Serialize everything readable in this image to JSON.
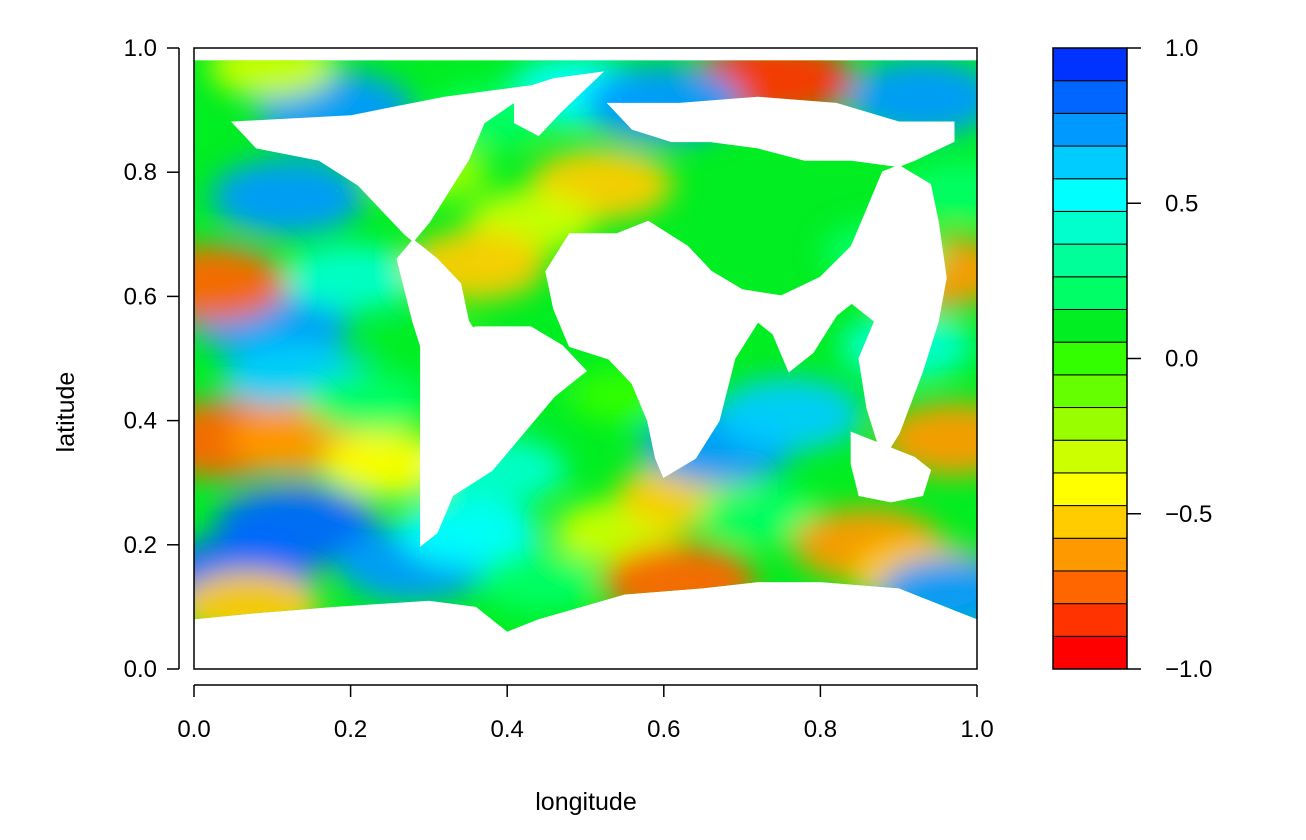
{
  "chart_data": {
    "type": "heatmap",
    "title": "",
    "xlabel": "longitude",
    "ylabel": "latitude",
    "xlim": [
      0.0,
      1.0
    ],
    "ylim": [
      0.0,
      1.0
    ],
    "x_ticks": [
      "0.0",
      "0.2",
      "0.4",
      "0.6",
      "0.8",
      "1.0"
    ],
    "y_ticks": [
      "0.0",
      "0.2",
      "0.4",
      "0.6",
      "0.8",
      "1.0"
    ],
    "grid": false,
    "colorbar": {
      "range": [
        -1.0,
        1.0
      ],
      "ticks": [
        "1.0",
        "0.5",
        "0.0",
        "−0.5",
        "−1.0"
      ],
      "tick_values": [
        1.0,
        0.5,
        0.0,
        -0.5,
        -1.0
      ],
      "colors_bottom_to_top": [
        "#ff0000",
        "#ff3300",
        "#ff6600",
        "#ff9900",
        "#ffcc00",
        "#ffff00",
        "#ccff00",
        "#99ff00",
        "#66ff00",
        "#33ff00",
        "#00ee22",
        "#00ff66",
        "#00ff99",
        "#00ffcc",
        "#00ffff",
        "#00ccff",
        "#0099ff",
        "#0066ff",
        "#0033ff"
      ]
    },
    "ocean_field_blobs": [
      {
        "x": 0.13,
        "y": 0.23,
        "v": 0.85
      },
      {
        "x": 0.05,
        "y": 0.15,
        "v": 0.8
      },
      {
        "x": 0.28,
        "y": 0.17,
        "v": 0.7
      },
      {
        "x": 0.1,
        "y": 0.56,
        "v": 0.75
      },
      {
        "x": 0.13,
        "y": 0.47,
        "v": 0.6
      },
      {
        "x": 0.12,
        "y": 0.76,
        "v": 0.7
      },
      {
        "x": 0.2,
        "y": 0.63,
        "v": 0.4
      },
      {
        "x": 0.04,
        "y": 0.37,
        "v": -0.75
      },
      {
        "x": 0.14,
        "y": 0.37,
        "v": -0.6
      },
      {
        "x": 0.02,
        "y": 0.62,
        "v": -0.7
      },
      {
        "x": 0.25,
        "y": 0.33,
        "v": -0.4
      },
      {
        "x": 0.22,
        "y": 0.43,
        "v": 0.2
      },
      {
        "x": 0.3,
        "y": 0.52,
        "v": 0.1
      },
      {
        "x": 0.35,
        "y": 0.22,
        "v": 0.5
      },
      {
        "x": 0.39,
        "y": 0.32,
        "v": 0.4
      },
      {
        "x": 0.44,
        "y": 0.14,
        "v": 0.2
      },
      {
        "x": 0.42,
        "y": 0.46,
        "v": 0.1
      },
      {
        "x": 0.54,
        "y": 0.22,
        "v": -0.3
      },
      {
        "x": 0.63,
        "y": 0.28,
        "v": -0.5
      },
      {
        "x": 0.62,
        "y": 0.14,
        "v": -0.7
      },
      {
        "x": 0.67,
        "y": 0.36,
        "v": 0.7
      },
      {
        "x": 0.76,
        "y": 0.41,
        "v": 0.6
      },
      {
        "x": 0.72,
        "y": 0.25,
        "v": 0.2
      },
      {
        "x": 0.86,
        "y": 0.2,
        "v": -0.65
      },
      {
        "x": 0.93,
        "y": 0.15,
        "v": -0.5
      },
      {
        "x": 0.97,
        "y": 0.12,
        "v": 0.7
      },
      {
        "x": 0.97,
        "y": 0.37,
        "v": -0.6
      },
      {
        "x": 0.95,
        "y": 0.64,
        "v": -0.6
      },
      {
        "x": 0.91,
        "y": 0.52,
        "v": 0.4
      },
      {
        "x": 0.88,
        "y": 0.67,
        "v": 0.2
      },
      {
        "x": 0.98,
        "y": 0.77,
        "v": 0.2
      },
      {
        "x": 0.74,
        "y": 0.95,
        "v": -0.8
      },
      {
        "x": 0.52,
        "y": 0.78,
        "v": -0.55
      },
      {
        "x": 0.43,
        "y": 0.72,
        "v": -0.3
      },
      {
        "x": 0.36,
        "y": 0.65,
        "v": -0.5
      },
      {
        "x": 0.49,
        "y": 0.93,
        "v": 0.5
      },
      {
        "x": 0.6,
        "y": 0.91,
        "v": 0.75
      },
      {
        "x": 0.38,
        "y": 0.89,
        "v": 0.2
      },
      {
        "x": 0.18,
        "y": 0.9,
        "v": 0.75
      },
      {
        "x": 0.1,
        "y": 0.97,
        "v": -0.3
      },
      {
        "x": 0.07,
        "y": 0.1,
        "v": -0.55
      },
      {
        "x": 0.93,
        "y": 0.92,
        "v": 0.7
      },
      {
        "x": 0.55,
        "y": 0.44,
        "v": 0.0
      },
      {
        "x": 0.3,
        "y": 0.8,
        "v": -0.2
      }
    ],
    "land_masks": [
      {
        "name": "North America",
        "polygon": [
          [
            0.05,
            0.88
          ],
          [
            0.2,
            0.89
          ],
          [
            0.32,
            0.92
          ],
          [
            0.38,
            0.93
          ],
          [
            0.44,
            0.94
          ],
          [
            0.37,
            0.88
          ],
          [
            0.35,
            0.82
          ],
          [
            0.3,
            0.72
          ],
          [
            0.26,
            0.66
          ],
          [
            0.28,
            0.56
          ],
          [
            0.29,
            0.52
          ],
          [
            0.33,
            0.49
          ],
          [
            0.35,
            0.47
          ],
          [
            0.38,
            0.46
          ],
          [
            0.37,
            0.52
          ],
          [
            0.35,
            0.56
          ],
          [
            0.34,
            0.62
          ],
          [
            0.31,
            0.66
          ],
          [
            0.27,
            0.7
          ],
          [
            0.21,
            0.78
          ],
          [
            0.16,
            0.82
          ],
          [
            0.08,
            0.84
          ],
          [
            0.05,
            0.88
          ]
        ]
      },
      {
        "name": "South America",
        "polygon": [
          [
            0.29,
            0.52
          ],
          [
            0.36,
            0.55
          ],
          [
            0.43,
            0.55
          ],
          [
            0.47,
            0.52
          ],
          [
            0.5,
            0.48
          ],
          [
            0.46,
            0.44
          ],
          [
            0.42,
            0.38
          ],
          [
            0.38,
            0.32
          ],
          [
            0.33,
            0.28
          ],
          [
            0.31,
            0.22
          ],
          [
            0.29,
            0.2
          ],
          [
            0.29,
            0.3
          ],
          [
            0.29,
            0.4
          ],
          [
            0.29,
            0.52
          ]
        ]
      },
      {
        "name": "Greenland",
        "polygon": [
          [
            0.41,
            0.93
          ],
          [
            0.46,
            0.95
          ],
          [
            0.52,
            0.96
          ],
          [
            0.47,
            0.9
          ],
          [
            0.44,
            0.86
          ],
          [
            0.41,
            0.88
          ],
          [
            0.41,
            0.93
          ]
        ]
      },
      {
        "name": "Eurasia-Africa",
        "polygon": [
          [
            0.53,
            0.91
          ],
          [
            0.62,
            0.91
          ],
          [
            0.72,
            0.92
          ],
          [
            0.82,
            0.91
          ],
          [
            0.9,
            0.88
          ],
          [
            0.97,
            0.88
          ],
          [
            0.97,
            0.85
          ],
          [
            0.92,
            0.82
          ],
          [
            0.88,
            0.8
          ],
          [
            0.86,
            0.74
          ],
          [
            0.84,
            0.68
          ],
          [
            0.8,
            0.63
          ],
          [
            0.75,
            0.6
          ],
          [
            0.7,
            0.61
          ],
          [
            0.66,
            0.64
          ],
          [
            0.63,
            0.68
          ],
          [
            0.58,
            0.72
          ],
          [
            0.54,
            0.7
          ],
          [
            0.48,
            0.7
          ],
          [
            0.45,
            0.64
          ],
          [
            0.46,
            0.58
          ],
          [
            0.48,
            0.52
          ],
          [
            0.53,
            0.5
          ],
          [
            0.56,
            0.46
          ],
          [
            0.58,
            0.4
          ],
          [
            0.59,
            0.34
          ],
          [
            0.6,
            0.31
          ],
          [
            0.64,
            0.34
          ],
          [
            0.67,
            0.4
          ],
          [
            0.69,
            0.5
          ],
          [
            0.72,
            0.56
          ],
          [
            0.74,
            0.54
          ],
          [
            0.76,
            0.48
          ],
          [
            0.79,
            0.51
          ],
          [
            0.82,
            0.57
          ],
          [
            0.84,
            0.59
          ],
          [
            0.87,
            0.56
          ],
          [
            0.85,
            0.5
          ],
          [
            0.86,
            0.42
          ],
          [
            0.88,
            0.34
          ],
          [
            0.9,
            0.38
          ],
          [
            0.93,
            0.48
          ],
          [
            0.95,
            0.56
          ],
          [
            0.96,
            0.63
          ],
          [
            0.95,
            0.72
          ],
          [
            0.94,
            0.78
          ],
          [
            0.9,
            0.81
          ],
          [
            0.84,
            0.82
          ],
          [
            0.78,
            0.82
          ],
          [
            0.72,
            0.84
          ],
          [
            0.66,
            0.85
          ],
          [
            0.61,
            0.85
          ],
          [
            0.56,
            0.87
          ],
          [
            0.53,
            0.91
          ]
        ]
      },
      {
        "name": "Australia",
        "polygon": [
          [
            0.84,
            0.38
          ],
          [
            0.88,
            0.36
          ],
          [
            0.92,
            0.34
          ],
          [
            0.94,
            0.32
          ],
          [
            0.93,
            0.28
          ],
          [
            0.89,
            0.27
          ],
          [
            0.85,
            0.28
          ],
          [
            0.84,
            0.33
          ],
          [
            0.84,
            0.38
          ]
        ]
      },
      {
        "name": "Madagascar",
        "polygon": [
          [
            0.64,
            0.39
          ],
          [
            0.66,
            0.4
          ],
          [
            0.65,
            0.36
          ],
          [
            0.63,
            0.36
          ],
          [
            0.64,
            0.39
          ]
        ]
      }
    ],
    "ocean_mask": {
      "polygon": [
        [
          0.0,
          0.08
        ],
        [
          0.08,
          0.09
        ],
        [
          0.18,
          0.1
        ],
        [
          0.3,
          0.11
        ],
        [
          0.36,
          0.1
        ],
        [
          0.4,
          0.06
        ],
        [
          0.44,
          0.08
        ],
        [
          0.55,
          0.12
        ],
        [
          0.65,
          0.13
        ],
        [
          0.72,
          0.14
        ],
        [
          0.8,
          0.14
        ],
        [
          0.9,
          0.13
        ],
        [
          0.96,
          0.1
        ],
        [
          1.0,
          0.08
        ],
        [
          1.0,
          0.98
        ],
        [
          0.0,
          0.98
        ]
      ]
    }
  }
}
